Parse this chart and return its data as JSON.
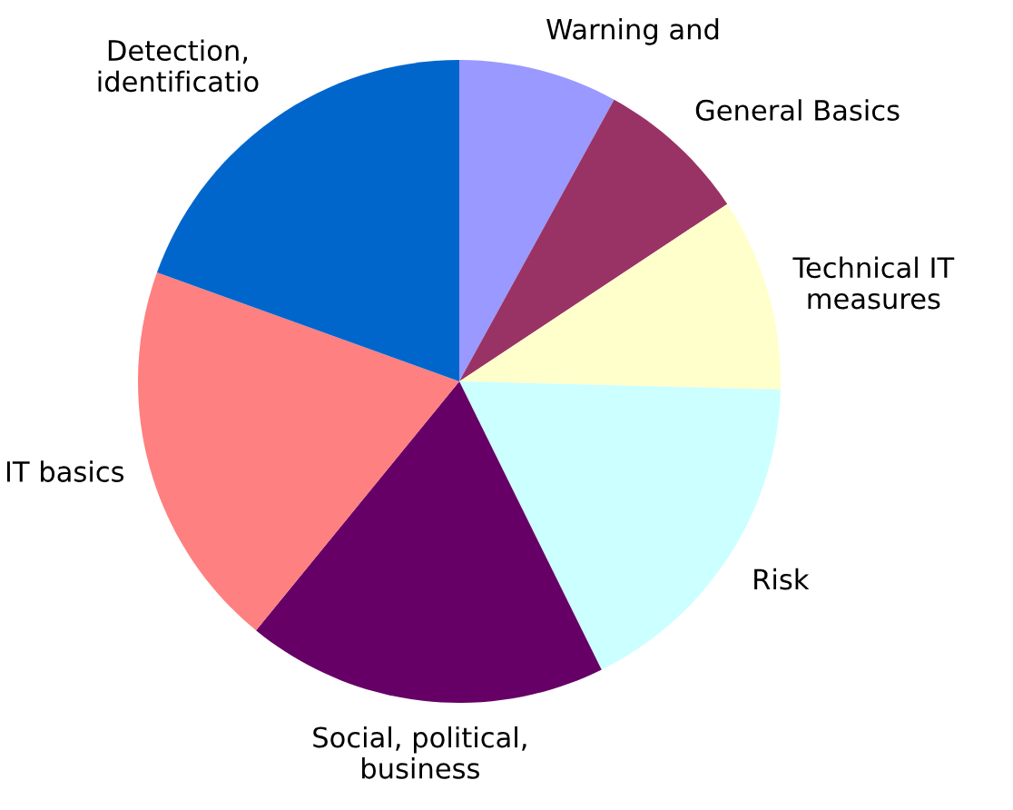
{
  "chart_data": {
    "type": "pie",
    "categories": [
      "Warning and",
      "General Basics",
      "Technical IT\nmeasures",
      "Risk",
      "Social, political,\nbusiness",
      "IT basics",
      "Detection,\nidentificatio"
    ],
    "values": [
      8,
      7.7,
      9.7,
      17.3,
      18.2,
      19.6,
      19.5
    ],
    "colors": [
      "#9999ff",
      "#993366",
      "#ffffcc",
      "#ccffff",
      "#660066",
      "#ff8080",
      "#0066cc"
    ],
    "legend": false
  }
}
